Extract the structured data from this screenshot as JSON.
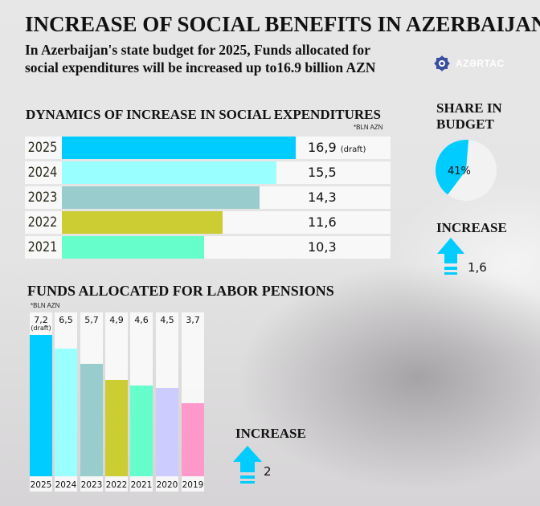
{
  "header": {
    "title": "INCREASE OF SOCIAL BENEFITS IN AZERBAIJAN",
    "subtitle_line1": "In Azerbaijan's state budget for 2025, Funds allocated for",
    "subtitle_line2": "social expenditures will be increased up to16.9 billion AZN",
    "logo_text": "AZƏRTAC"
  },
  "colors": {
    "accent": "#00ccff"
  },
  "chart_data": [
    {
      "type": "bar",
      "orientation": "horizontal",
      "title": "DYNAMICS OF INCREASE IN SOCIAL EXPENDITURES",
      "unit": "*BLN AZN",
      "categories": [
        "2025",
        "2024",
        "2023",
        "2022",
        "2021"
      ],
      "values": [
        16.9,
        15.5,
        14.3,
        11.6,
        10.3
      ],
      "labels": [
        "16,9",
        "15,5",
        "14,3",
        "11,6",
        "10,3"
      ],
      "notes": [
        "(draft)",
        "",
        "",
        "",
        ""
      ],
      "colors": [
        "#00ccff",
        "#99ffff",
        "#99cccc",
        "#cccc33",
        "#66ffcc"
      ]
    },
    {
      "type": "pie",
      "title": "SHARE IN BUDGET",
      "values": [
        41,
        59
      ],
      "label": "41%",
      "colors": [
        "#00ccff",
        "#f2f2f2"
      ]
    },
    {
      "type": "bar",
      "title": "FUNDS ALLOCATED FOR LABOR PENSIONS",
      "unit": "*BLN AZN",
      "categories": [
        "2025",
        "2024",
        "2023",
        "2022",
        "2021",
        "2020",
        "2019"
      ],
      "values": [
        7.2,
        6.5,
        5.7,
        4.9,
        4.6,
        4.5,
        3.7
      ],
      "labels": [
        "7,2",
        "6,5",
        "5,7",
        "4,9",
        "4,6",
        "4,5",
        "3,7"
      ],
      "notes": [
        "(draft)",
        "",
        "",
        "",
        "",
        "",
        ""
      ],
      "colors": [
        "#00ccff",
        "#99ffff",
        "#99cccc",
        "#cccc33",
        "#66ffcc",
        "#ccccff",
        "#ff99cc"
      ]
    }
  ],
  "increase1": {
    "label": "INCREASE",
    "value": "1,6"
  },
  "increase2": {
    "label": "INCREASE",
    "value": "2"
  }
}
